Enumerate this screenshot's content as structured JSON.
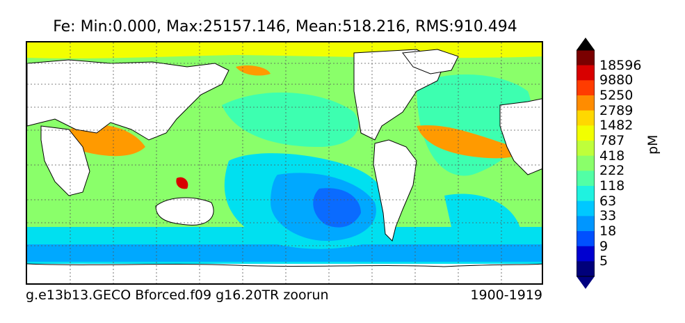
{
  "title": "Fe: Min:0.000, Max:25157.146, Mean:518.216, RMS:910.494",
  "footer": {
    "case_name": "g.e13b13.GECO Bforced.f09 g16.20TR zoorun",
    "years": "1900-1919"
  },
  "colorbar": {
    "unit": "pM",
    "tick_labels": [
      "18596",
      "9880",
      "5250",
      "2789",
      "1482",
      "787",
      "418",
      "222",
      "118",
      "63",
      "33",
      "18",
      "9",
      "5"
    ],
    "colors": [
      "#7a0000",
      "#d80000",
      "#ff3c00",
      "#ff8c00",
      "#ffd800",
      "#f2ff00",
      "#bfff3a",
      "#8aff6a",
      "#52ffa5",
      "#1ff2e0",
      "#00c8ff",
      "#0096ff",
      "#0050ff",
      "#0000d0",
      "#00007a"
    ]
  },
  "map": {
    "ocean_colors": {
      "deep_low": "#0a6bff",
      "low": "#00a8ff",
      "mid_low": "#00e0f0",
      "mid": "#3dffb0",
      "mid_high": "#8aff6a",
      "high": "#f2ff00",
      "very_high": "#ff9a00",
      "extreme": "#d80000"
    },
    "land_color": "#ffffff"
  }
}
